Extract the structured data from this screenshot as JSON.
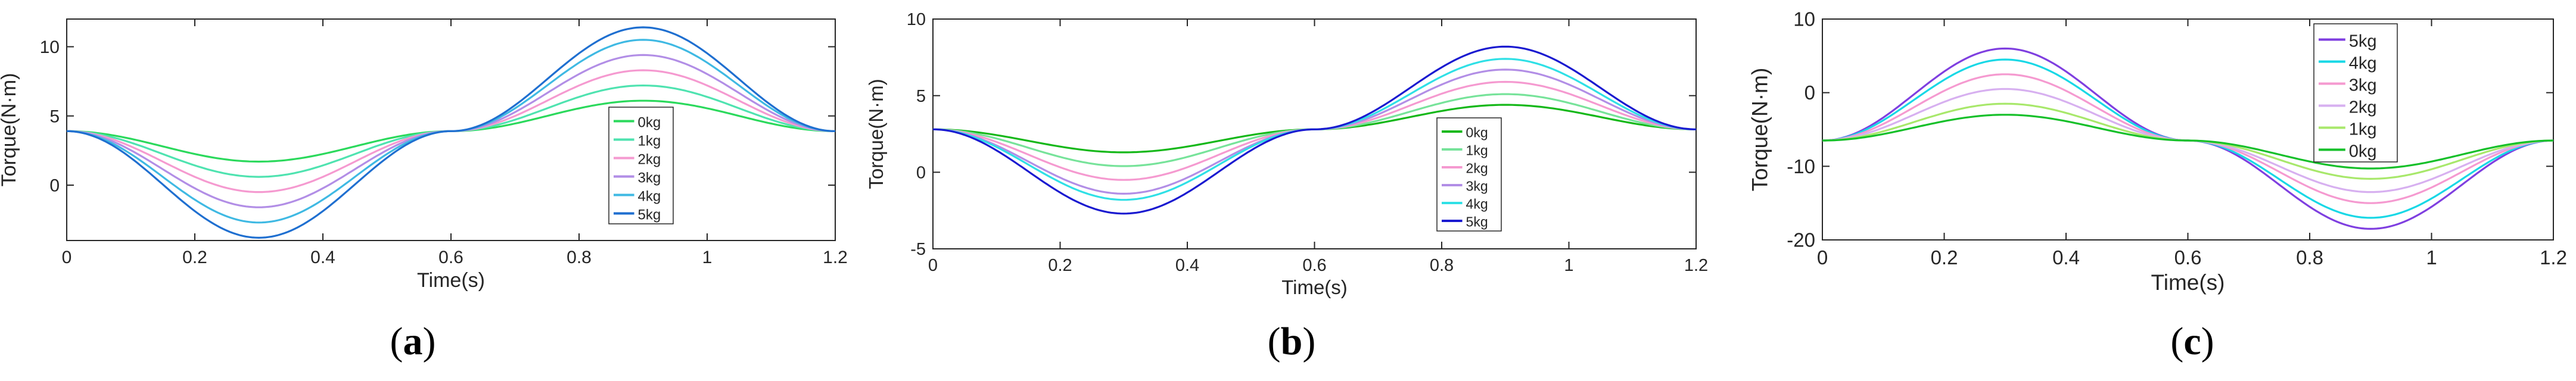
{
  "charts": [
    {
      "panel_label": "a",
      "type": "line",
      "xlabel": "Time(s)",
      "ylabel": "Torque(N·m)",
      "xlim": [
        0,
        1.2
      ],
      "ylim": [
        -4,
        12
      ],
      "xticks": [
        0,
        0.2,
        0.4,
        0.6,
        0.8,
        1,
        1.2
      ],
      "xtick_labels": [
        "0",
        "0.2",
        "0.4",
        "0.6",
        "0.8",
        "1",
        "1.2"
      ],
      "yticks": [
        0,
        5,
        10
      ],
      "ytick_labels": [
        "0",
        "5",
        "10"
      ],
      "legend_position": "lower-center",
      "series": [
        {
          "name": "0kg",
          "color": "#2bd95c",
          "base": 3.9,
          "amp1": 2.2,
          "amp2": 2.2
        },
        {
          "name": "1kg",
          "color": "#4fe3b0",
          "base": 3.9,
          "amp1": 3.3,
          "amp2": 3.3
        },
        {
          "name": "2kg",
          "color": "#f59ad0",
          "base": 3.9,
          "amp1": 4.4,
          "amp2": 4.4
        },
        {
          "name": "3kg",
          "color": "#b28ee6",
          "base": 3.9,
          "amp1": 5.5,
          "amp2": 5.5
        },
        {
          "name": "4kg",
          "color": "#3fb9e3",
          "base": 3.9,
          "amp1": 6.6,
          "amp2": 6.6
        },
        {
          "name": "5kg",
          "color": "#1f6fd0",
          "base": 3.9,
          "amp1": 7.7,
          "amp2": 7.5
        }
      ]
    },
    {
      "panel_label": "b",
      "type": "line",
      "xlabel": "Time(s)",
      "ylabel": "Torque(N·m)",
      "xlim": [
        0,
        1.2
      ],
      "ylim": [
        -5,
        10
      ],
      "xticks": [
        0,
        0.2,
        0.4,
        0.6,
        0.8,
        1,
        1.2
      ],
      "xtick_labels": [
        "0",
        "0.2",
        "0.4",
        "0.6",
        "0.8",
        "1",
        "1.2"
      ],
      "yticks": [
        -5,
        0,
        5,
        10
      ],
      "ytick_labels": [
        "-5",
        "0",
        "5",
        "10"
      ],
      "legend_position": "lower-center",
      "series": [
        {
          "name": "0kg",
          "color": "#16b81a",
          "base": 2.8,
          "amp1": 1.5,
          "amp2": 1.6
        },
        {
          "name": "1kg",
          "color": "#77e39a",
          "base": 2.8,
          "amp1": 2.4,
          "amp2": 2.3
        },
        {
          "name": "2kg",
          "color": "#f59ad0",
          "base": 2.8,
          "amp1": 3.3,
          "amp2": 3.1
        },
        {
          "name": "3kg",
          "color": "#b28ee6",
          "base": 2.8,
          "amp1": 4.2,
          "amp2": 3.9
        },
        {
          "name": "4kg",
          "color": "#2fe0e6",
          "base": 2.8,
          "amp1": 4.6,
          "amp2": 4.6
        },
        {
          "name": "5kg",
          "color": "#1a1ad0",
          "base": 2.8,
          "amp1": 5.5,
          "amp2": 5.4
        }
      ]
    },
    {
      "panel_label": "c",
      "type": "line",
      "xlabel": "Time(s)",
      "ylabel": "Torque(N·m)",
      "xlim": [
        0,
        1.2
      ],
      "ylim": [
        -20,
        10
      ],
      "xticks": [
        0,
        0.2,
        0.4,
        0.6,
        0.8,
        1,
        1.2
      ],
      "xtick_labels": [
        "0",
        "0.2",
        "0.4",
        "0.6",
        "0.8",
        "1",
        "1.2"
      ],
      "yticks": [
        -20,
        -10,
        0,
        10
      ],
      "ytick_labels": [
        "-20",
        "-10",
        "0",
        "10"
      ],
      "legend_position": "top-center",
      "series": [
        {
          "name": "5kg",
          "color": "#7f3fe0",
          "base": -6.5,
          "amp1": -12.5,
          "amp2": -12.0
        },
        {
          "name": "4kg",
          "color": "#18d8e6",
          "base": -6.5,
          "amp1": -11.0,
          "amp2": -10.5
        },
        {
          "name": "3kg",
          "color": "#f59ad0",
          "base": -6.5,
          "amp1": -9.0,
          "amp2": -8.5
        },
        {
          "name": "2kg",
          "color": "#d7b0f0",
          "base": -6.5,
          "amp1": -7.0,
          "amp2": -7.0
        },
        {
          "name": "1kg",
          "color": "#a8e86b",
          "base": -6.5,
          "amp1": -5.0,
          "amp2": -5.2
        },
        {
          "name": "0kg",
          "color": "#16c02a",
          "base": -6.5,
          "amp1": -3.5,
          "amp2": -3.8
        }
      ]
    }
  ]
}
